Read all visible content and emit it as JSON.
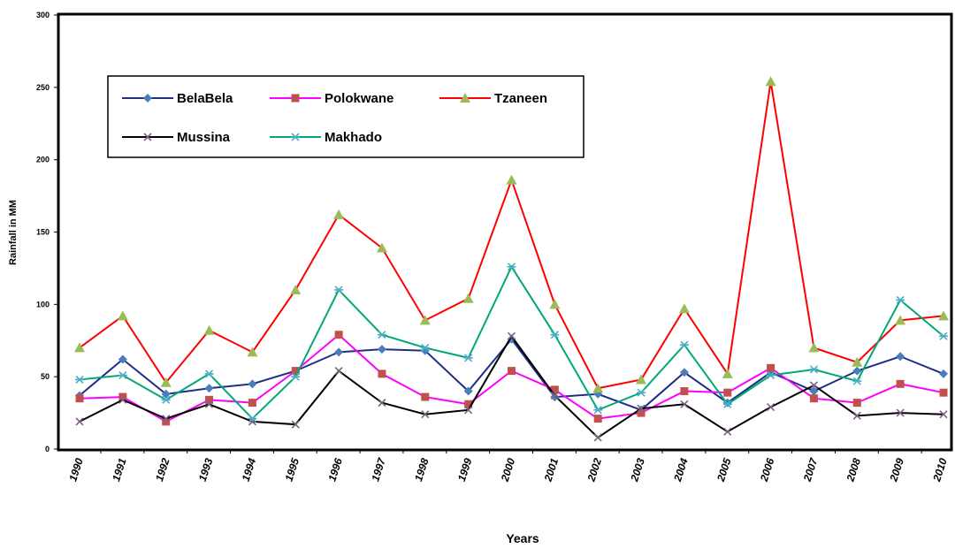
{
  "chart_data": {
    "type": "line",
    "x_label": "Years",
    "y_label": "Rainfall in MM",
    "categories": [
      "1990",
      "1991",
      "1992",
      "1993",
      "1994",
      "1995",
      "1996",
      "1997",
      "1998",
      "1999",
      "2000",
      "2001",
      "2002",
      "2003",
      "2004",
      "2005",
      "2006",
      "2007",
      "2008",
      "2009",
      "2010"
    ],
    "series": [
      {
        "name": "BelaBela",
        "color": "#1f2f86",
        "marker_color": "#4a7ebb",
        "marker": "diamond",
        "values": [
          37,
          62,
          38,
          42,
          45,
          54,
          67,
          69,
          68,
          40,
          76,
          36,
          38,
          27,
          53,
          32,
          53,
          40,
          54,
          64,
          52
        ]
      },
      {
        "name": "Polokwane",
        "color": "#ff00ff",
        "marker_color": "#c0504d",
        "marker": "square",
        "values": [
          35,
          36,
          19,
          34,
          32,
          54,
          79,
          52,
          36,
          31,
          54,
          41,
          21,
          25,
          40,
          39,
          56,
          35,
          32,
          45,
          39
        ]
      },
      {
        "name": "Tzaneen",
        "color": "#ff0000",
        "marker_color": "#9bbb59",
        "marker": "triangle",
        "values": [
          70,
          92,
          46,
          82,
          67,
          110,
          162,
          139,
          89,
          104,
          186,
          100,
          42,
          48,
          97,
          52,
          254,
          70,
          60,
          89,
          92
        ]
      },
      {
        "name": "Mussina",
        "color": "#000000",
        "marker_color": "#7f6084",
        "marker": "x",
        "values": [
          19,
          34,
          21,
          31,
          19,
          17,
          54,
          32,
          24,
          27,
          78,
          37,
          8,
          28,
          31,
          12,
          29,
          44,
          23,
          25,
          24
        ]
      },
      {
        "name": "Makhado",
        "color": "#00a878",
        "marker_color": "#4bacc6",
        "marker": "star",
        "values": [
          48,
          51,
          34,
          52,
          21,
          50,
          110,
          79,
          70,
          63,
          126,
          79,
          27,
          39,
          72,
          31,
          51,
          55,
          47,
          103,
          78
        ]
      }
    ],
    "ylim": [
      0,
      300
    ],
    "yticks": [
      0,
      50,
      100,
      150,
      200,
      250,
      300
    ],
    "grid": false
  }
}
